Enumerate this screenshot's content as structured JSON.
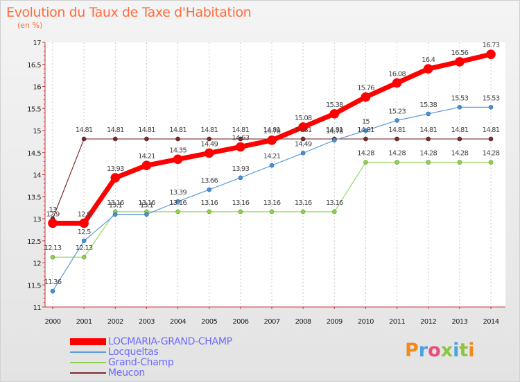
{
  "header": {
    "title": "Evolution du Taux de Taxe d'Habitation",
    "unit": "(en %)"
  },
  "brand": {
    "text": "Proxiti"
  },
  "chart_data": {
    "type": "line",
    "title": "Evolution du Taux de Taxe d'Habitation",
    "ylabel": "(en %)",
    "xlabel": "",
    "x": [
      "2000",
      "2001",
      "2002",
      "2003",
      "2004",
      "2005",
      "2006",
      "2007",
      "2008",
      "2009",
      "2010",
      "2011",
      "2012",
      "2013",
      "2014"
    ],
    "ylim": [
      11,
      17
    ],
    "yticks": [
      "11",
      "11.5",
      "12",
      "12.5",
      "13",
      "13.5",
      "14",
      "14.5",
      "15",
      "15.5",
      "16",
      "16.5",
      "17"
    ],
    "grid": "vertical-dashed",
    "legend_position": "bottom-left",
    "series": [
      {
        "name": "LOCMARIA-GRAND-CHAMP",
        "color": "#ff0000",
        "values": [
          12.9,
          12.9,
          13.93,
          14.21,
          14.35,
          14.49,
          14.63,
          14.78,
          15.08,
          15.38,
          15.76,
          16.08,
          16.4,
          16.56,
          16.73
        ],
        "labels": [
          "12.9",
          "12.9",
          "13.93",
          "14.21",
          "14.35",
          "14.49",
          "14.63",
          "14.78",
          "15.08",
          "15.38",
          "15.76",
          "16.08",
          "16.4",
          "16.56",
          "16.73"
        ]
      },
      {
        "name": "Locqueltas",
        "color": "#5b9bd5",
        "values": [
          11.36,
          12.5,
          13.1,
          13.1,
          13.39,
          13.66,
          13.93,
          14.21,
          14.49,
          14.78,
          15.0,
          15.23,
          15.38,
          15.53,
          15.53
        ],
        "labels": [
          "11.36",
          "12.5",
          "13.1",
          "13.1",
          "13.39",
          "13.66",
          "13.93",
          "14.21",
          "14.49",
          "14.78",
          "15",
          "15.23",
          "15.38",
          "15.53",
          "15.53"
        ]
      },
      {
        "name": "Grand-Champ",
        "color": "#8fd14f",
        "values": [
          12.13,
          12.13,
          13.16,
          13.16,
          13.16,
          13.16,
          13.16,
          13.16,
          13.16,
          13.16,
          14.28,
          14.28,
          14.28,
          14.28,
          14.28
        ],
        "labels": [
          "12.13",
          "12.13",
          "13.16",
          "13.16",
          "13.16",
          "13.16",
          "13.16",
          "13.16",
          "13.16",
          "13.16",
          "14.28",
          "14.28",
          "14.28",
          "14.28",
          "14.28"
        ]
      },
      {
        "name": "Meucon",
        "color": "#7b2d2d",
        "values": [
          13.0,
          14.81,
          14.81,
          14.81,
          14.81,
          14.81,
          14.81,
          14.81,
          14.81,
          14.81,
          14.81,
          14.81,
          14.81,
          14.81,
          14.81
        ],
        "labels": [
          "13",
          "14.81",
          "14.81",
          "14.81",
          "14.81",
          "14.81",
          "14.81",
          "14.81",
          "14.81",
          "14.81",
          "14.81",
          "14.81",
          "14.81",
          "14.81",
          "14.81"
        ]
      }
    ]
  },
  "legend": {
    "items": [
      {
        "label": "LOCMARIA-GRAND-CHAMP",
        "color": "#ff0000",
        "text_color": "#6a6aff"
      },
      {
        "label": "Locqueltas",
        "color": "#5b9bd5",
        "text_color": "#6a6aff"
      },
      {
        "label": "Grand-Champ",
        "color": "#8fd14f",
        "text_color": "#6a6aff"
      },
      {
        "label": "Meucon",
        "color": "#7b2d2d",
        "text_color": "#6a6aff"
      }
    ]
  }
}
